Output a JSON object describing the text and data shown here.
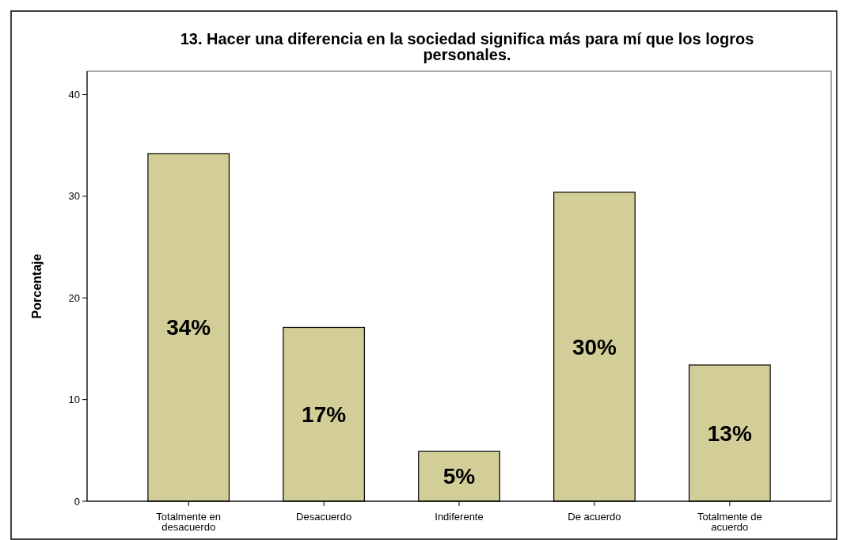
{
  "chart_data": {
    "type": "bar",
    "title": "13. Hacer una diferencia en la sociedad significa más para mí que los logros personales.",
    "ylabel": "Porcentaje",
    "categories": [
      "Totalmente en desacuerdo",
      "Desacuerdo",
      "Indiferente",
      "De acuerdo",
      "Totalmente de acuerdo"
    ],
    "values": [
      34.2,
      17.1,
      4.9,
      30.4,
      13.4
    ],
    "value_labels": [
      "34%",
      "17%",
      "5%",
      "30%",
      "13%"
    ],
    "color": "#d3ce98",
    "ylim": [
      0,
      42.3
    ],
    "yticks": [
      0,
      10,
      20,
      30,
      40
    ],
    "grid": false
  }
}
